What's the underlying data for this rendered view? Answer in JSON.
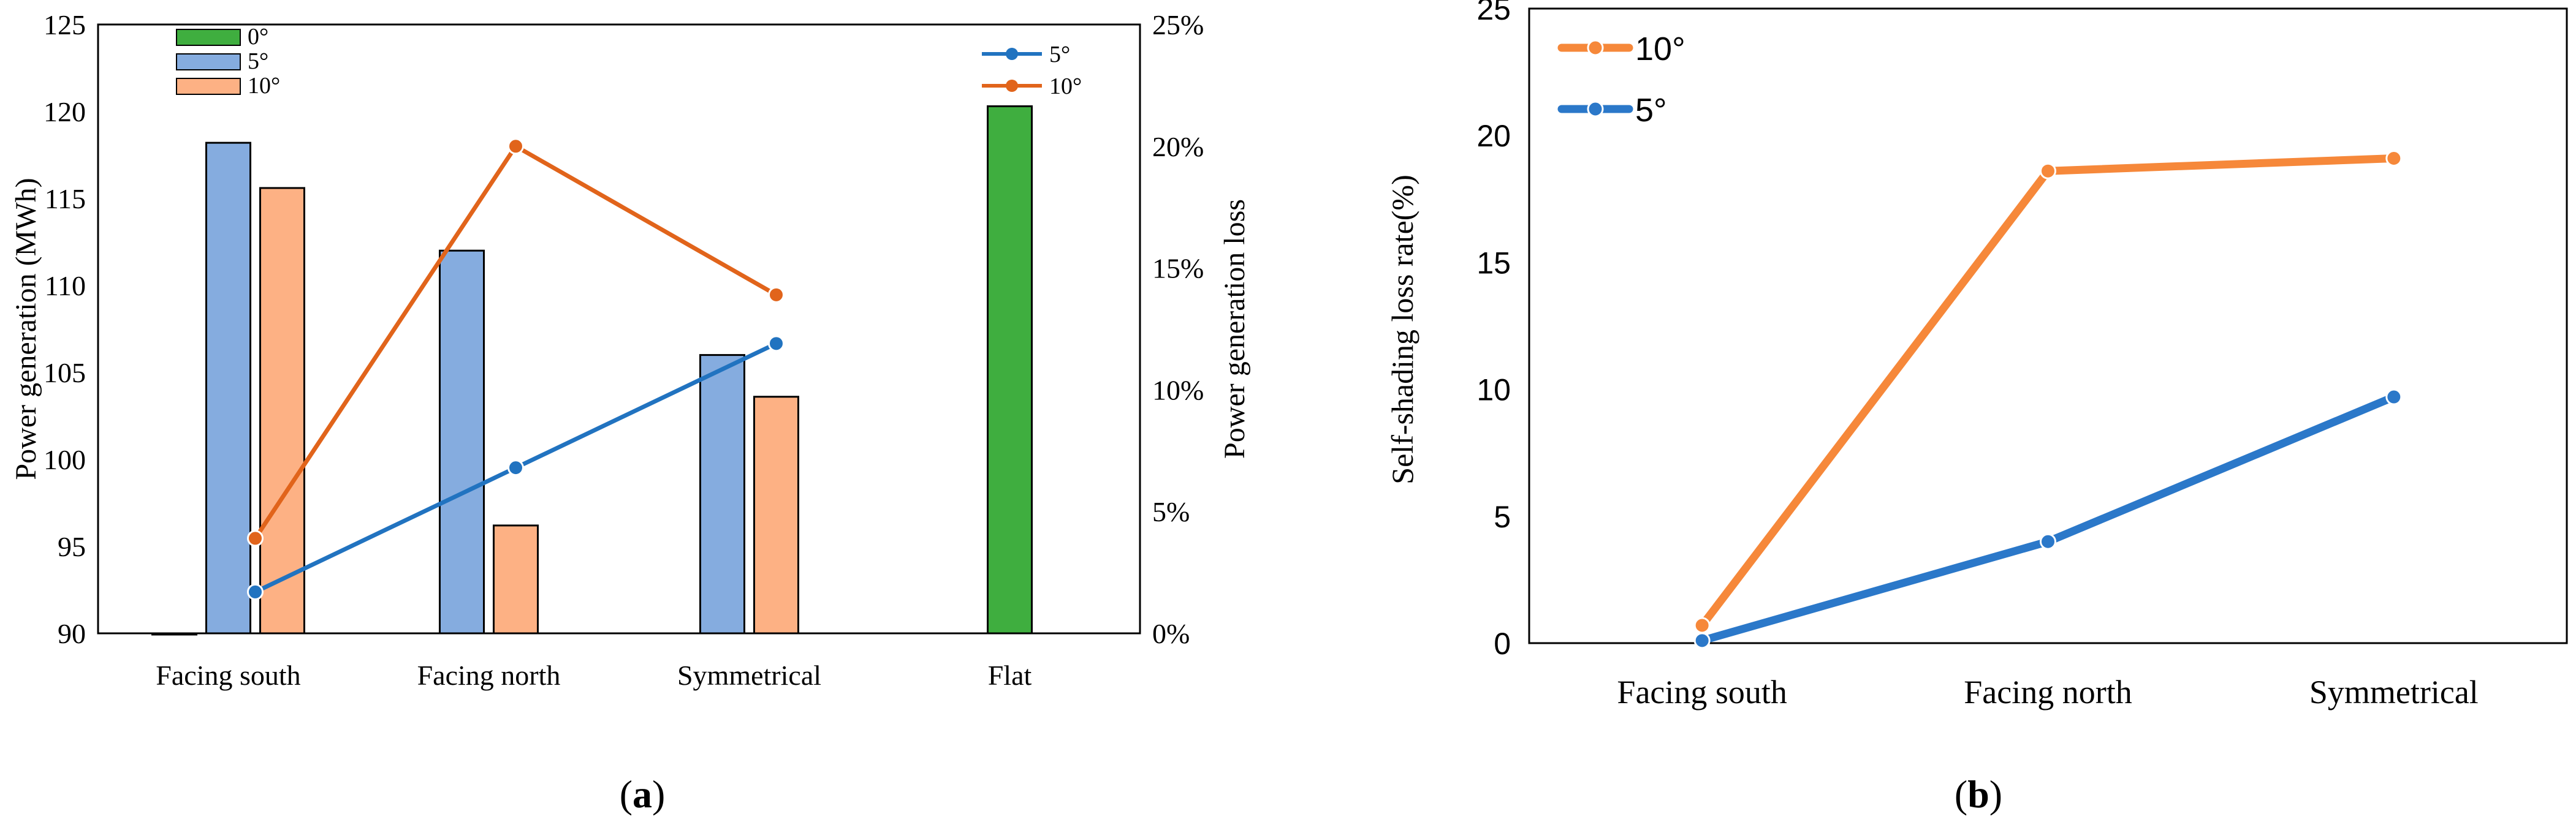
{
  "chart_data": [
    {
      "panel": "a",
      "type": "bar+line",
      "title": "",
      "categories": [
        "Facing south",
        "Facing north",
        "Symmetrical",
        "Flat"
      ],
      "ylabel": "Power generation (MWh)",
      "ylim": [
        90,
        125
      ],
      "yticks": [
        90,
        95,
        100,
        105,
        110,
        115,
        120,
        125
      ],
      "y2label": "Power generation loss",
      "y2lim": [
        0,
        25
      ],
      "y2ticks": [
        "0%",
        "5%",
        "10%",
        "15%",
        "20%",
        "25%"
      ],
      "bar_series": [
        {
          "name": "0°",
          "color": "#3fae3f",
          "values": [
            90,
            null,
            null,
            120.3
          ]
        },
        {
          "name": "5°",
          "color": "#85acdf",
          "values": [
            118.2,
            112.0,
            106.0,
            null
          ]
        },
        {
          "name": "10°",
          "color": "#fdb184",
          "values": [
            115.6,
            96.2,
            103.6,
            null
          ]
        }
      ],
      "line_series": [
        {
          "name": "5°",
          "color": "#2173c0",
          "values": [
            1.7,
            6.8,
            11.9
          ]
        },
        {
          "name": "10°",
          "color": "#e1641b",
          "values": [
            3.9,
            20.0,
            13.9
          ]
        }
      ],
      "caption": "a"
    },
    {
      "panel": "b",
      "type": "line",
      "title": "",
      "categories": [
        "Facing south",
        "Facing north",
        "Symmetrical"
      ],
      "ylabel": "Self-shading loss rate(%)",
      "ylim": [
        0,
        25
      ],
      "yticks": [
        "0",
        "5",
        "10",
        "15",
        "20",
        "25"
      ],
      "series": [
        {
          "name": "10°",
          "color": "#f6883a",
          "values": [
            0.7,
            18.6,
            19.1
          ]
        },
        {
          "name": "5°",
          "color": "#2b78c9",
          "values": [
            0.1,
            4.0,
            9.7
          ]
        }
      ],
      "caption": "b"
    }
  ]
}
